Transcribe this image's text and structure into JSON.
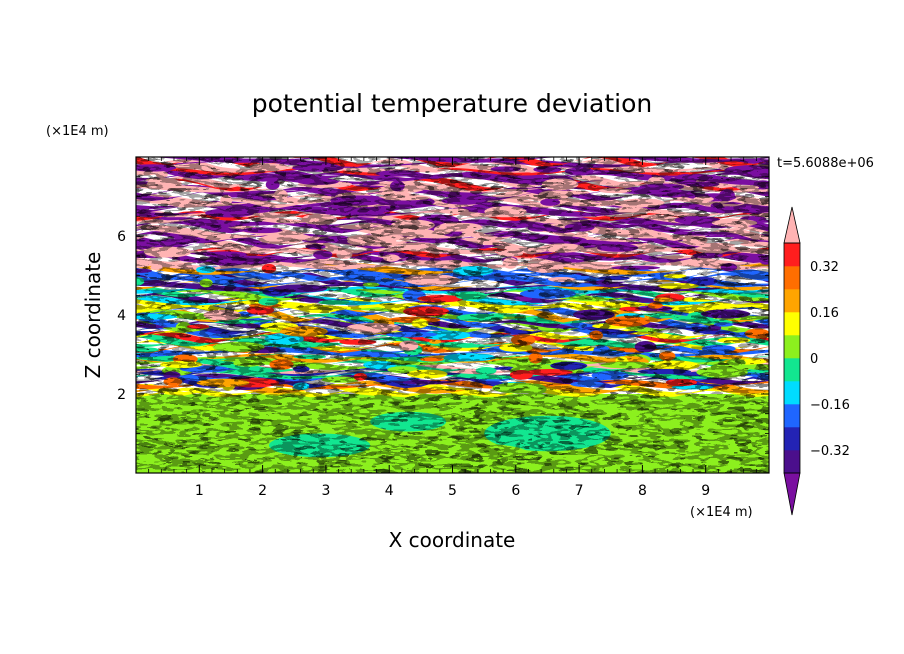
{
  "chart_data": {
    "type": "heatmap",
    "title": "potential temperature deviation",
    "xlabel": "X coordinate",
    "ylabel": "Z coordinate",
    "x_unit_label": "(×1E4 m)",
    "y_unit_label": "(×1E4 m)",
    "time_label": "t=5.6088e+06",
    "xlim": [
      0,
      10
    ],
    "ylim": [
      0,
      8
    ],
    "x_ticks": [
      1,
      2,
      3,
      4,
      5,
      6,
      7,
      8,
      9
    ],
    "y_ticks": [
      2,
      4,
      6
    ],
    "grid": false,
    "colorbar": {
      "placement": "right",
      "extend": "both",
      "min": -0.4,
      "max": 0.4,
      "step": 0.08,
      "labels": [
        "0.32",
        "0.16",
        "0",
        "−0.16",
        "−0.32"
      ],
      "label_values": [
        0.32,
        0.16,
        0,
        -0.16,
        -0.32
      ],
      "colors": [
        "#4b0f8c",
        "#2323b4",
        "#1f66ff",
        "#00dcff",
        "#12e690",
        "#8cf01e",
        "#ffff00",
        "#ffa500",
        "#ff6e00",
        "#ff1e1e",
        "#ffb3b3"
      ],
      "under_color": "#7a0fa0",
      "over_color": "#ffb3b3"
    },
    "bands": [
      {
        "z_range": [
          0,
          2
        ],
        "pattern": "smooth mostly near zero deviation (greens)"
      },
      {
        "z_range": [
          2,
          5.2
        ],
        "pattern": "turbulent layers, full range of deviation"
      },
      {
        "z_range": [
          5.2,
          8
        ],
        "pattern": "alternating strong positive (pink) and negative (purple) layers"
      }
    ]
  }
}
